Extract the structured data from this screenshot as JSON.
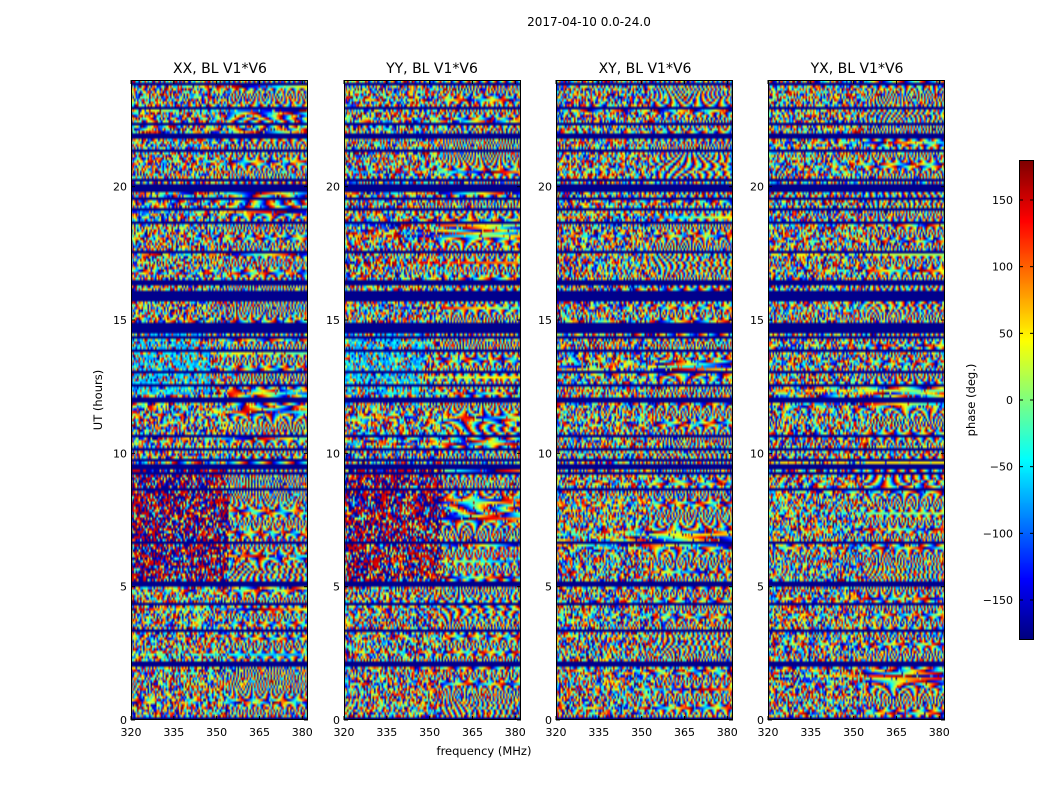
{
  "chart_data": {
    "type": "heatmap",
    "title": "2017-04-10 0.0-24.0",
    "xlabel": "frequency (MHz)",
    "ylabel": "UT (hours)",
    "xlim": [
      320,
      382
    ],
    "ylim": [
      0,
      24
    ],
    "xticks": [
      "320",
      "335",
      "350",
      "365",
      "380"
    ],
    "yticks": [
      "0",
      "5",
      "10",
      "15",
      "20"
    ],
    "panels": [
      {
        "title": "XX, BL V1*V6",
        "pol": "XX"
      },
      {
        "title": "YY, BL V1*V6",
        "pol": "YY"
      },
      {
        "title": "XY, BL V1*V6",
        "pol": "XY"
      },
      {
        "title": "YX, BL V1*V6",
        "pol": "YX"
      }
    ],
    "colorbar": {
      "label": "phase (deg.)",
      "range": [
        -180,
        180
      ],
      "ticks": [
        "150",
        "100",
        "50",
        "0",
        "−50",
        "−100",
        "−150"
      ],
      "colormap": "jet"
    }
  },
  "colors": {
    "jet": [
      "#00007f",
      "#0000ff",
      "#007fff",
      "#00ffff",
      "#7fff7f",
      "#ffff00",
      "#ff7f00",
      "#ff0000",
      "#7f0000"
    ]
  }
}
